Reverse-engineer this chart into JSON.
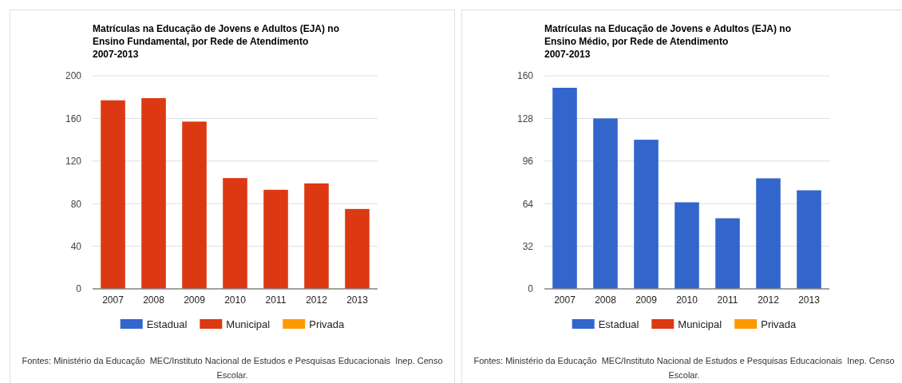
{
  "chart_data": [
    {
      "type": "bar",
      "title": "Matrículas na Educação de Jovens e Adultos (EJA) no Ensino Fundamental, por Rede de Atendimento",
      "subtitle": "2007-2013",
      "categories": [
        "2007",
        "2008",
        "2009",
        "2010",
        "2011",
        "2012",
        "2013"
      ],
      "series": [
        {
          "name": "Estadual",
          "color": "#3366cc",
          "values": [
            null,
            null,
            null,
            null,
            null,
            null,
            null
          ]
        },
        {
          "name": "Municipal",
          "color": "#dc3912",
          "values": [
            177,
            179,
            157,
            104,
            93,
            99,
            75
          ]
        },
        {
          "name": "Privada",
          "color": "#ff9900",
          "values": [
            null,
            null,
            null,
            null,
            null,
            null,
            null
          ]
        }
      ],
      "ylim": [
        0,
        200
      ],
      "yticks": [
        0,
        40,
        80,
        120,
        160,
        200
      ],
      "grid": "y",
      "legend": "bottom",
      "annotations": [
        "Fontes: Ministério da Educação  MEC/Instituto Nacional de Estudos e Pesquisas Educacionais  Inep. Censo Escolar."
      ]
    },
    {
      "type": "bar",
      "title": "Matrículas na Educação de Jovens e Adultos (EJA) no Ensino Médio, por Rede de Atendimento",
      "subtitle": "2007-2013",
      "categories": [
        "2007",
        "2008",
        "2009",
        "2010",
        "2011",
        "2012",
        "2013"
      ],
      "series": [
        {
          "name": "Estadual",
          "color": "#3366cc",
          "values": [
            151,
            128,
            112,
            65,
            53,
            83,
            74
          ]
        },
        {
          "name": "Municipal",
          "color": "#dc3912",
          "values": [
            null,
            null,
            null,
            null,
            null,
            null,
            null
          ]
        },
        {
          "name": "Privada",
          "color": "#ff9900",
          "values": [
            null,
            null,
            null,
            null,
            null,
            null,
            null
          ]
        }
      ],
      "ylim": [
        0,
        160
      ],
      "yticks": [
        0,
        32,
        64,
        96,
        128,
        160
      ],
      "grid": "y",
      "legend": "bottom",
      "annotations": [
        "Fontes: Ministério da Educação  MEC/Instituto Nacional de Estudos e Pesquisas Educacionais  Inep. Censo Escolar."
      ]
    }
  ]
}
